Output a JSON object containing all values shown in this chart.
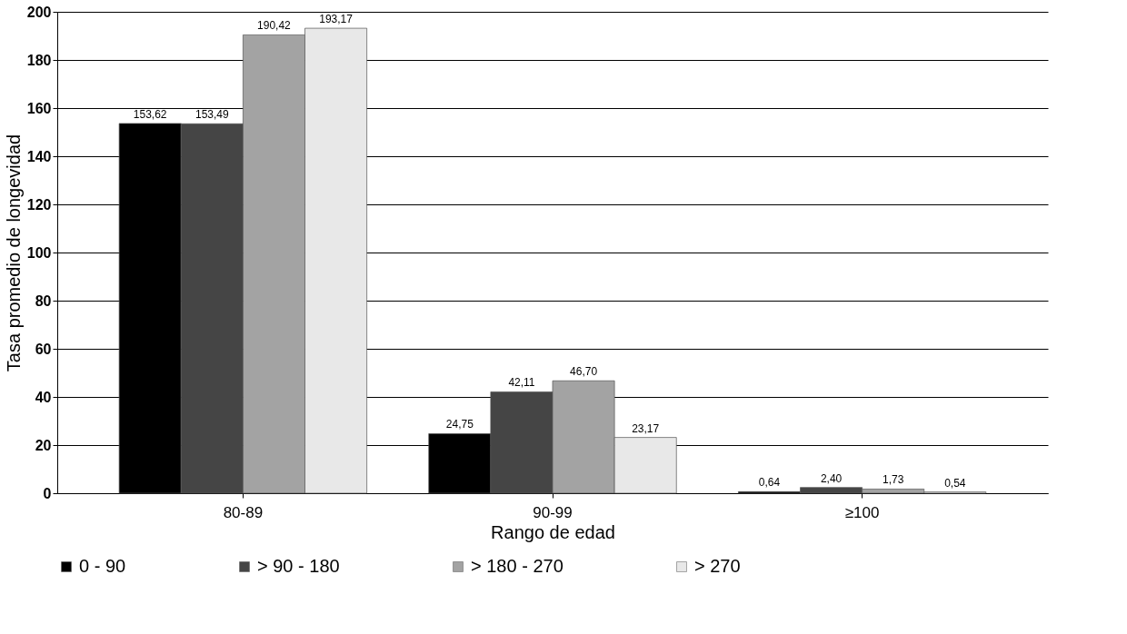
{
  "chart_data": {
    "type": "bar",
    "xlabel": "Rango de edad",
    "ylabel": "Tasa promedio de longevidad",
    "categories": [
      "80-89",
      "90-99",
      "≥100"
    ],
    "series": [
      {
        "name": "0 - 90",
        "color": "#000000",
        "values": [
          153.62,
          24.75,
          0.64
        ],
        "value_labels": [
          "153,62",
          "24,75",
          "0,64"
        ]
      },
      {
        "name": "> 90 - 180",
        "color": "#454545",
        "values": [
          153.49,
          42.11,
          2.4
        ],
        "value_labels": [
          "153,49",
          "42,11",
          "2,40"
        ]
      },
      {
        "name": "> 180 - 270",
        "color": "#a3a3a3",
        "values": [
          190.42,
          46.7,
          1.73
        ],
        "value_labels": [
          "190,42",
          "46,70",
          "1,73"
        ]
      },
      {
        "name": "> 270",
        "color": "#e8e8e8",
        "values": [
          193.17,
          23.17,
          0.54
        ],
        "value_labels": [
          "193,17",
          "23,17",
          "0,54"
        ]
      }
    ],
    "ylim": [
      0,
      200
    ],
    "yticks": [
      0,
      20,
      40,
      60,
      80,
      100,
      120,
      140,
      160,
      180,
      200
    ],
    "grid": "y",
    "legend": "bottom"
  }
}
